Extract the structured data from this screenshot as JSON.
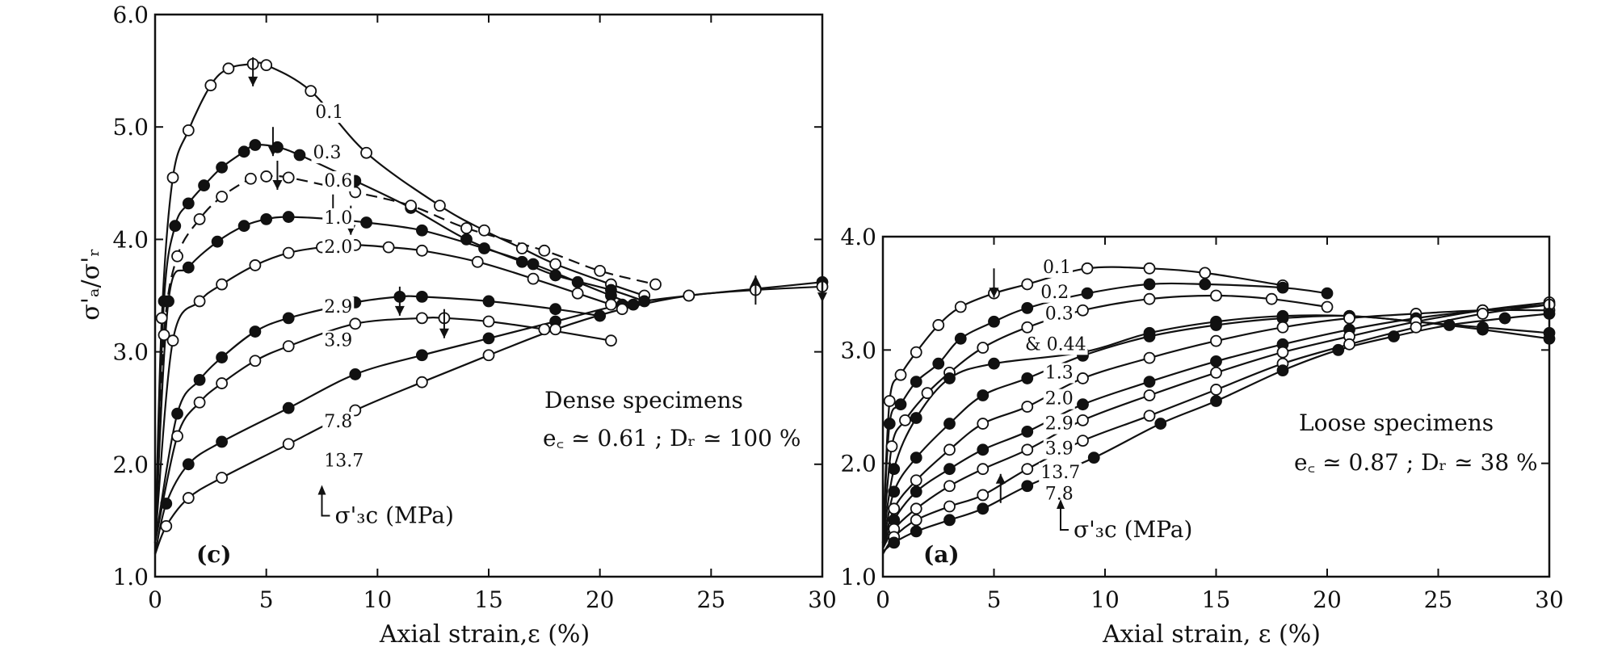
{
  "chart_data": [
    {
      "type": "line",
      "panel_label": "(c)",
      "annotation_title": "Dense specimens",
      "annotation_params": "e_c ≃ 0.61 ;  D_r ≃ 100 %",
      "pressure_label": "σ'_3c (MPa)",
      "xlabel": "Axial strain,ε (%)",
      "ylabel": "σ'_a/σ'_r",
      "xlim": [
        0,
        30
      ],
      "ylim": [
        1.0,
        6.0
      ],
      "xticks": [
        "0",
        "5",
        "10",
        "15",
        "20",
        "25",
        "30"
      ],
      "yticks": [
        "1.0",
        "2.0",
        "3.0",
        "4.0",
        "5.0",
        "6.0"
      ],
      "series": [
        {
          "name": "0.1",
          "marker": "open",
          "x": [
            0,
            0.3,
            0.8,
            1.5,
            2.5,
            3.3,
            4.4,
            5.0,
            7.0,
            9.5,
            12.8,
            14.8,
            16.5,
            18.0,
            20.5,
            22.0
          ],
          "y": [
            1.2,
            3.3,
            4.55,
            4.97,
            5.37,
            5.52,
            5.56,
            5.55,
            5.32,
            4.77,
            4.3,
            4.08,
            3.92,
            3.78,
            3.6,
            3.5
          ]
        },
        {
          "name": "0.3",
          "marker": "filled",
          "x": [
            0,
            0.4,
            0.9,
            1.5,
            2.2,
            3.0,
            4.0,
            4.5,
            5.5,
            6.5,
            9.0,
            11.5,
            14.0,
            16.5,
            18.0,
            20.5,
            22.0
          ],
          "y": [
            1.3,
            3.45,
            4.12,
            4.32,
            4.48,
            4.64,
            4.78,
            4.84,
            4.82,
            4.75,
            4.52,
            4.28,
            4.0,
            3.8,
            3.68,
            3.55,
            3.45
          ]
        },
        {
          "name": "0.6",
          "marker": "open",
          "dashed": true,
          "x": [
            0,
            0.4,
            1.0,
            2.0,
            3.0,
            4.3,
            5.0,
            6.0,
            9.0,
            11.5,
            14.0,
            17.5,
            20.0,
            22.5
          ],
          "y": [
            1.3,
            3.15,
            3.85,
            4.18,
            4.38,
            4.54,
            4.56,
            4.55,
            4.42,
            4.3,
            4.1,
            3.9,
            3.72,
            3.6
          ]
        },
        {
          "name": "1.0",
          "marker": "filled",
          "x": [
            0,
            0.6,
            1.5,
            2.8,
            4.0,
            5.0,
            6.0,
            8.0,
            9.5,
            12.0,
            14.8,
            17.0,
            19.0,
            20.5,
            21.5
          ],
          "y": [
            1.3,
            3.45,
            3.75,
            3.98,
            4.12,
            4.18,
            4.2,
            4.18,
            4.15,
            4.08,
            3.92,
            3.78,
            3.62,
            3.5,
            3.42
          ]
        },
        {
          "name": "2.0",
          "marker": "open",
          "x": [
            0,
            0.8,
            2.0,
            3.0,
            4.5,
            6.0,
            7.5,
            9.0,
            10.5,
            12.0,
            14.5,
            17.0,
            19.0,
            20.5
          ],
          "y": [
            1.3,
            3.1,
            3.45,
            3.6,
            3.77,
            3.88,
            3.93,
            3.95,
            3.93,
            3.9,
            3.8,
            3.65,
            3.52,
            3.42
          ]
        },
        {
          "name": "2.9",
          "marker": "filled",
          "x": [
            0,
            1.0,
            2.0,
            3.0,
            4.5,
            6.0,
            9.0,
            11.0,
            12.0,
            15.0,
            18.0,
            20.0
          ],
          "y": [
            1.3,
            2.45,
            2.75,
            2.95,
            3.18,
            3.3,
            3.44,
            3.49,
            3.49,
            3.45,
            3.38,
            3.32
          ]
        },
        {
          "name": "3.9",
          "marker": "open",
          "x": [
            0,
            1.0,
            2.0,
            3.0,
            4.5,
            6.0,
            9.0,
            12.0,
            13.0,
            15.0,
            17.5,
            20.5
          ],
          "y": [
            1.3,
            2.25,
            2.55,
            2.72,
            2.92,
            3.05,
            3.25,
            3.3,
            3.3,
            3.27,
            3.2,
            3.1
          ]
        },
        {
          "name": "7.8",
          "marker": "filled",
          "x": [
            0,
            0.5,
            1.5,
            3.0,
            6.0,
            9.0,
            12.0,
            15.0,
            18.0,
            21.0,
            24.0,
            27.0,
            30.0
          ],
          "y": [
            1.2,
            1.65,
            2.0,
            2.2,
            2.5,
            2.8,
            2.97,
            3.12,
            3.27,
            3.42,
            3.5,
            3.56,
            3.62
          ]
        },
        {
          "name": "13.7",
          "marker": "open",
          "x": [
            0,
            0.5,
            1.5,
            3.0,
            6.0,
            9.0,
            12.0,
            15.0,
            18.0,
            21.0,
            24.0,
            27.0,
            30.0
          ],
          "y": [
            1.2,
            1.45,
            1.7,
            1.88,
            2.18,
            2.48,
            2.73,
            2.97,
            3.2,
            3.38,
            3.5,
            3.55,
            3.58
          ]
        }
      ]
    },
    {
      "type": "line",
      "panel_label": "(a)",
      "annotation_title": "Loose specimens",
      "annotation_params": "e_c ≃ 0.87 ;  D_r ≃ 38 %",
      "pressure_label": "σ'_3c (MPa)",
      "xlabel": "Axial strain, ε (%)",
      "ylabel": "",
      "xlim": [
        0,
        30
      ],
      "ylim": [
        1.0,
        4.0
      ],
      "xticks": [
        "0",
        "5",
        "10",
        "15",
        "20",
        "25",
        "30"
      ],
      "yticks": [
        "1.0",
        "2.0",
        "3.0",
        "4.0"
      ],
      "series": [
        {
          "name": "0.1",
          "marker": "open",
          "x": [
            0,
            0.3,
            0.8,
            1.5,
            2.5,
            3.5,
            5.0,
            6.5,
            9.2,
            12.0,
            14.5,
            18.0
          ],
          "y": [
            1.3,
            2.55,
            2.78,
            2.98,
            3.22,
            3.38,
            3.5,
            3.58,
            3.72,
            3.72,
            3.68,
            3.57
          ]
        },
        {
          "name": "0.2",
          "marker": "filled",
          "x": [
            0,
            0.3,
            0.8,
            1.5,
            2.5,
            3.5,
            5.0,
            6.5,
            9.2,
            12.0,
            14.5,
            18.0,
            20.0
          ],
          "y": [
            1.3,
            2.35,
            2.52,
            2.72,
            2.88,
            3.1,
            3.25,
            3.37,
            3.5,
            3.58,
            3.58,
            3.55,
            3.5
          ]
        },
        {
          "name": "0.3",
          "marker": "open",
          "x": [
            0,
            0.4,
            1.0,
            2.0,
            3.0,
            4.5,
            6.5,
            9.0,
            12.0,
            15.0,
            17.5,
            20.0
          ],
          "y": [
            1.3,
            2.15,
            2.38,
            2.62,
            2.8,
            3.02,
            3.2,
            3.35,
            3.45,
            3.48,
            3.45,
            3.38
          ]
        },
        {
          "name": "& 0.44",
          "marker": "filled",
          "x": [
            0,
            0.5,
            1.5,
            3.0,
            5.0,
            9.0,
            12.0,
            15.0,
            18.0,
            21.0,
            24.0,
            27.0,
            30.0
          ],
          "y": [
            1.3,
            1.95,
            2.4,
            2.75,
            2.88,
            2.98,
            3.15,
            3.25,
            3.3,
            3.3,
            3.25,
            3.18,
            3.1
          ]
        },
        {
          "name": "1.3",
          "marker": "filled",
          "x": [
            0,
            0.5,
            1.5,
            3.0,
            4.5,
            6.5,
            9.0,
            12.0,
            15.0,
            18.0,
            21.0,
            24.0,
            27.0,
            30.0
          ],
          "y": [
            1.25,
            1.75,
            2.05,
            2.35,
            2.6,
            2.75,
            2.95,
            3.12,
            3.22,
            3.28,
            3.3,
            3.25,
            3.2,
            3.15
          ]
        },
        {
          "name": "2.0",
          "marker": "open",
          "x": [
            0,
            0.5,
            1.5,
            3.0,
            4.5,
            6.5,
            9.0,
            12.0,
            15.0,
            18.0,
            21.0,
            24.0,
            27.0,
            30.0
          ],
          "y": [
            1.25,
            1.6,
            1.85,
            2.12,
            2.35,
            2.5,
            2.75,
            2.93,
            3.08,
            3.2,
            3.28,
            3.32,
            3.35,
            3.35
          ]
        },
        {
          "name": "2.9",
          "marker": "filled",
          "x": [
            0,
            0.5,
            1.5,
            3.0,
            4.5,
            6.5,
            9.0,
            12.0,
            15.0,
            18.0,
            21.0,
            24.0,
            27.0,
            30.0
          ],
          "y": [
            1.25,
            1.5,
            1.75,
            1.95,
            2.12,
            2.28,
            2.52,
            2.72,
            2.9,
            3.05,
            3.18,
            3.28,
            3.35,
            3.4
          ]
        },
        {
          "name": "3.9",
          "marker": "open",
          "x": [
            0,
            0.5,
            1.5,
            3.0,
            4.5,
            6.5,
            9.0,
            12.0,
            15.0,
            18.0,
            21.0,
            24.0,
            27.0,
            30.0
          ],
          "y": [
            1.25,
            1.42,
            1.6,
            1.8,
            1.95,
            2.12,
            2.38,
            2.6,
            2.8,
            2.98,
            3.12,
            3.25,
            3.35,
            3.42
          ]
        },
        {
          "name": "13.7",
          "marker": "open",
          "x": [
            0,
            0.5,
            1.5,
            3.0,
            4.5,
            6.5,
            9.0,
            12.0,
            15.0,
            18.0,
            21.0,
            24.0,
            27.0,
            30.0
          ],
          "y": [
            1.2,
            1.35,
            1.5,
            1.62,
            1.72,
            1.95,
            2.2,
            2.42,
            2.65,
            2.88,
            3.05,
            3.2,
            3.32,
            3.4
          ]
        },
        {
          "name": "7.8",
          "marker": "filled",
          "x": [
            0,
            0.5,
            1.5,
            3.0,
            4.5,
            6.5,
            9.5,
            12.5,
            15.0,
            18.0,
            20.5,
            23.0,
            25.5,
            28.0,
            30.0
          ],
          "y": [
            1.22,
            1.3,
            1.4,
            1.5,
            1.6,
            1.8,
            2.05,
            2.35,
            2.55,
            2.82,
            3.0,
            3.12,
            3.22,
            3.28,
            3.32
          ]
        }
      ]
    }
  ]
}
